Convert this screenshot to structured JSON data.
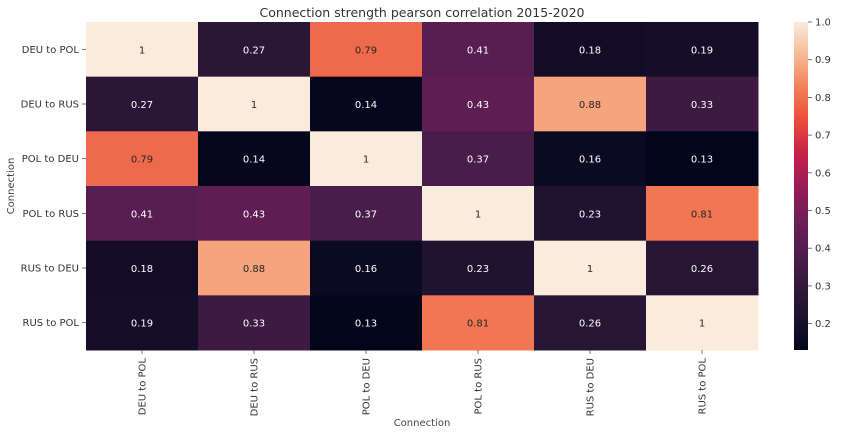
{
  "chart_data": {
    "type": "heatmap",
    "title": "Connection strength pearson correlation 2015-2020",
    "xlabel": "Connection",
    "ylabel": "Connection",
    "rows": [
      "DEU to POL",
      "DEU to RUS",
      "POL to DEU",
      "POL to RUS",
      "RUS to DEU",
      "RUS to POL"
    ],
    "columns": [
      "DEU to POL",
      "DEU to RUS",
      "POL to DEU",
      "POL to RUS",
      "RUS to DEU",
      "RUS to POL"
    ],
    "values": [
      [
        1,
        0.27,
        0.79,
        0.41,
        0.18,
        0.19
      ],
      [
        0.27,
        1,
        0.14,
        0.43,
        0.88,
        0.33
      ],
      [
        0.79,
        0.14,
        1,
        0.37,
        0.16,
        0.13
      ],
      [
        0.41,
        0.43,
        0.37,
        1,
        0.23,
        0.81
      ],
      [
        0.18,
        0.88,
        0.16,
        0.23,
        1,
        0.26
      ],
      [
        0.19,
        0.33,
        0.13,
        0.81,
        0.26,
        1
      ]
    ],
    "cell_labels": [
      [
        "1",
        "0.27",
        "0.79",
        "0.41",
        "0.18",
        "0.19"
      ],
      [
        "0.27",
        "1",
        "0.14",
        "0.43",
        "0.88",
        "0.33"
      ],
      [
        "0.79",
        "0.14",
        "1",
        "0.37",
        "0.16",
        "0.13"
      ],
      [
        "0.41",
        "0.43",
        "0.37",
        "1",
        "0.23",
        "0.81"
      ],
      [
        "0.18",
        "0.88",
        "0.16",
        "0.23",
        "1",
        "0.26"
      ],
      [
        "0.19",
        "0.33",
        "0.13",
        "0.81",
        "0.26",
        "1"
      ]
    ],
    "colorbar": {
      "min": 0.13,
      "max": 1.0,
      "ticks": [
        0.2,
        0.3,
        0.4,
        0.5,
        0.6,
        0.7,
        0.8,
        0.9,
        1.0
      ],
      "tick_labels": [
        "0.2",
        "0.3",
        "0.4",
        "0.5",
        "0.6",
        "0.7",
        "0.8",
        "0.9",
        "1.0"
      ],
      "colormap": "rocket"
    }
  }
}
